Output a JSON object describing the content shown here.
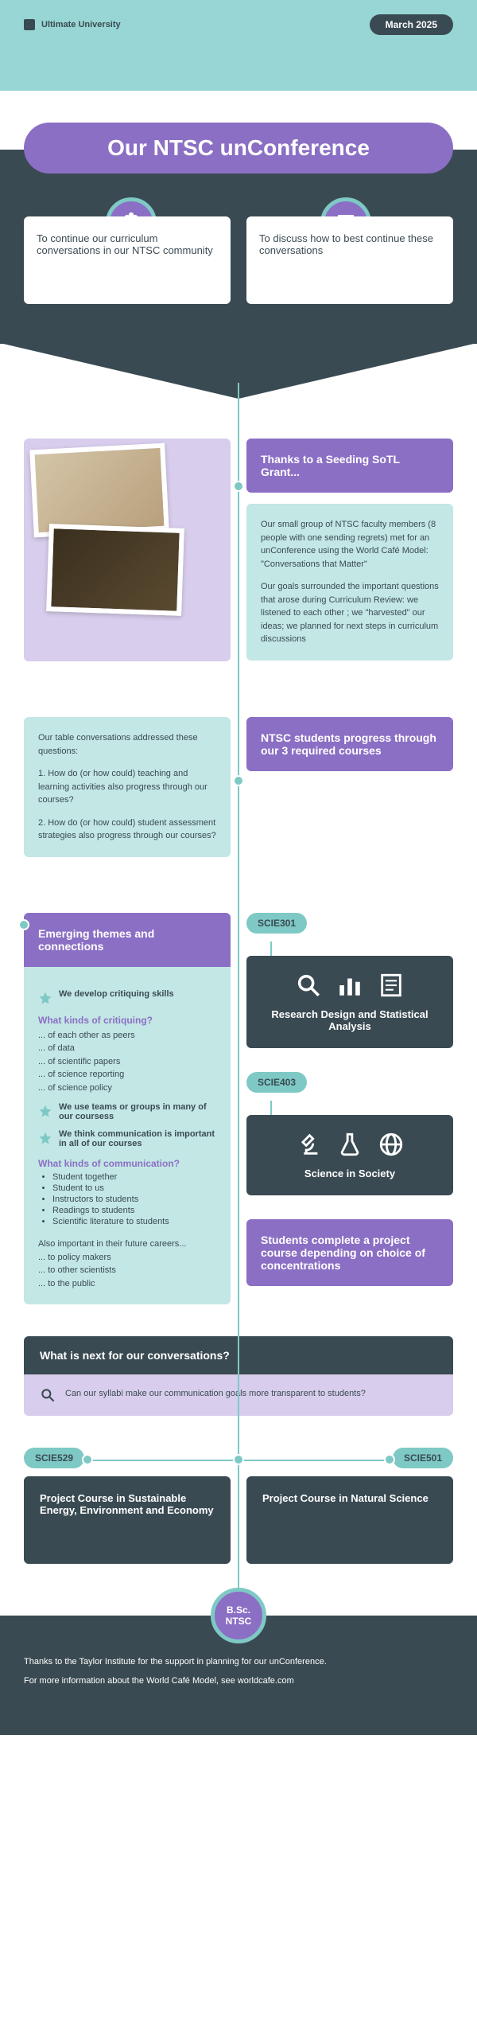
{
  "header": {
    "university": "Ultimate University",
    "date": "March 2025"
  },
  "title": "Our NTSC unConference",
  "intro_cards": {
    "left": "To continue our curriculum conversations in our NTSC community",
    "right": "To discuss how to best continue these conversations"
  },
  "section1": {
    "heading": "Thanks to a Seeding SoTL Grant...",
    "para1": "Our small group of NTSC faculty members (8 people with one sending regrets) met for an unConference using the World Café Model: \"Conversations that Matter\"",
    "para2": "Our goals surrounded the important questions that arose during Curriculum Review: we listened to each other ; we \"harvested\" our ideas; we planned for next steps in curriculum discussions"
  },
  "section2": {
    "left_intro": "Our table conversations addressed these questions:",
    "left_q1": "1. How do (or how could) teaching and learning activities also progress through our courses?",
    "left_q2": "2. How do (or how could) student assessment strategies also progress through our courses?",
    "right_heading": "NTSC students progress through our 3 required courses"
  },
  "courses": {
    "scie301": {
      "code": "SCIE301",
      "title": "Research Design and Statistical Analysis"
    },
    "scie403": {
      "code": "SCIE403",
      "title": "Science in Society"
    },
    "project_note": "Students complete a project course depending on choice of concentrations",
    "scie529": {
      "code": "SCIE529",
      "title": "Project Course in Sustainable Energy, Environment and Economy"
    },
    "scie501": {
      "code": "SCIE501",
      "title": "Project Course in Natural Science"
    }
  },
  "themes": {
    "heading": "Emerging themes and connections",
    "star1": "We develop critiquing skills",
    "sub1": "What kinds of critiquing?",
    "crit_list": [
      "... of each other as peers",
      "... of data",
      "... of scientific papers",
      "... of science reporting",
      "... of science policy"
    ],
    "star2": "We use teams or groups in many of our coursess",
    "star3": "We think communication is important in all of our courses",
    "sub2": "What kinds of communication?",
    "comm_list": [
      "Student together",
      "Student to us",
      "Instructors to students",
      "Readings to students",
      "Scientific literature to students"
    ],
    "also": "Also important in their future careers...",
    "also_list": [
      "... to policy makers",
      "... to other scientists",
      "... to the public"
    ]
  },
  "next": {
    "heading": "What is next for our conversations?",
    "body": "Can our syllabi make our communication goals more transparent to students?"
  },
  "bsc": "B.Sc. NTSC",
  "footer": {
    "line1": "Thanks to the Taylor Institute for the support in planning for our unConference.",
    "line2": "For more information about the World Café Model, see worldcafe.com"
  },
  "colors": {
    "teal": "#97d6d4",
    "teal2": "#7ec9c5",
    "purple": "#8b6fc4",
    "lilac": "#d8cdec",
    "dark": "#3a4a52",
    "mint": "#c3e7e5"
  }
}
